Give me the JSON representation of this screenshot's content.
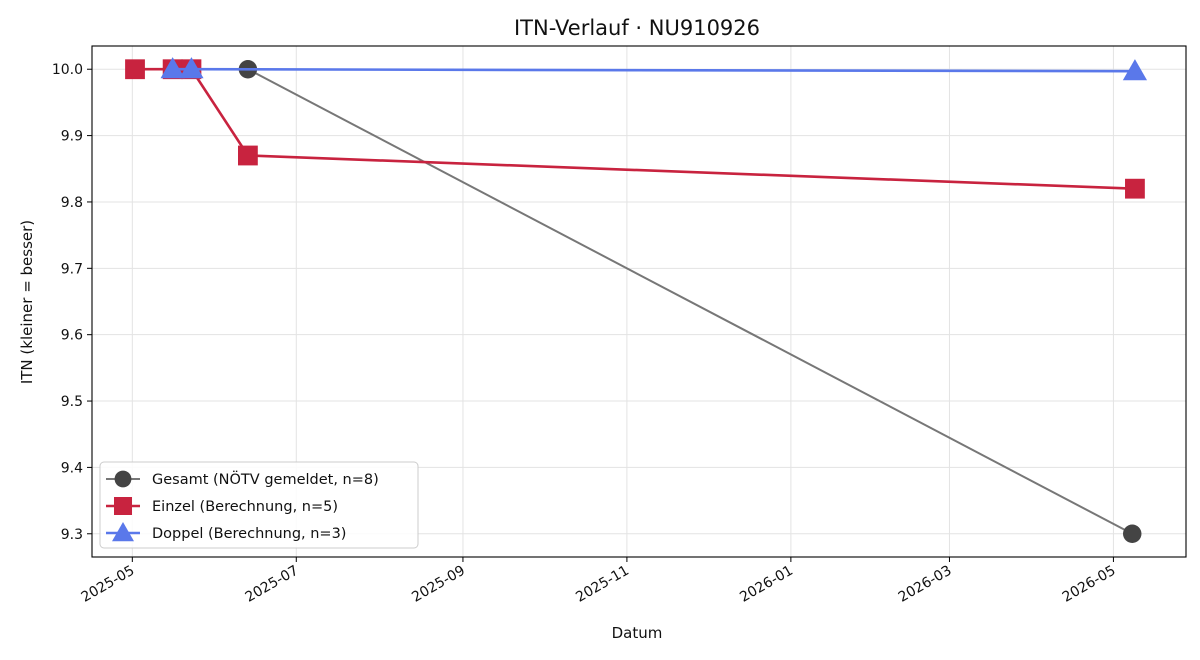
{
  "chart_data": {
    "type": "line",
    "title": "ITN-Verlauf · NU910926",
    "xlabel": "Datum",
    "ylabel": "ITN  (kleiner = besser)",
    "x_type": "date",
    "xlim": [
      "2025-04-16",
      "2026-05-28"
    ],
    "ylim": [
      9.265,
      10.035
    ],
    "x_ticks": [
      "2025-05-01",
      "2025-07-01",
      "2025-09-01",
      "2025-11-01",
      "2026-01-01",
      "2026-03-01",
      "2026-05-01"
    ],
    "x_tick_labels": [
      "2025-05",
      "2025-07",
      "2025-09",
      "2025-11",
      "2026-01",
      "2026-03",
      "2026-05"
    ],
    "y_ticks": [
      9.3,
      9.4,
      9.5,
      9.6,
      9.7,
      9.8,
      9.9,
      10.0
    ],
    "y_tick_labels": [
      "9.3",
      "9.4",
      "9.5",
      "9.6",
      "9.7",
      "9.8",
      "9.9",
      "10.0"
    ],
    "grid": true,
    "legend_position": "bottom-left",
    "series": [
      {
        "name": "Gesamt (NÖTV gemeldet, n=8)",
        "color": "#777777",
        "marker_color": "#444444",
        "marker": "circle",
        "points": [
          {
            "x": "2025-06-13",
            "y": 10.0
          },
          {
            "x": "2026-05-08",
            "y": 9.3
          }
        ]
      },
      {
        "name": "Einzel (Berechnung, n=5)",
        "color": "#c8233f",
        "marker_color": "#c8233f",
        "marker": "square",
        "points": [
          {
            "x": "2025-05-02",
            "y": 10.0
          },
          {
            "x": "2025-05-16",
            "y": 10.0
          },
          {
            "x": "2025-05-23",
            "y": 10.0
          },
          {
            "x": "2025-06-13",
            "y": 9.87
          },
          {
            "x": "2026-05-09",
            "y": 9.82
          }
        ]
      },
      {
        "name": "Doppel (Berechnung, n=3)",
        "color": "#5a78ea",
        "marker_color": "#5a78ea",
        "marker": "triangle",
        "points": [
          {
            "x": "2025-05-16",
            "y": 10.0
          },
          {
            "x": "2025-05-23",
            "y": 10.0
          },
          {
            "x": "2026-05-09",
            "y": 9.997
          }
        ]
      }
    ]
  }
}
